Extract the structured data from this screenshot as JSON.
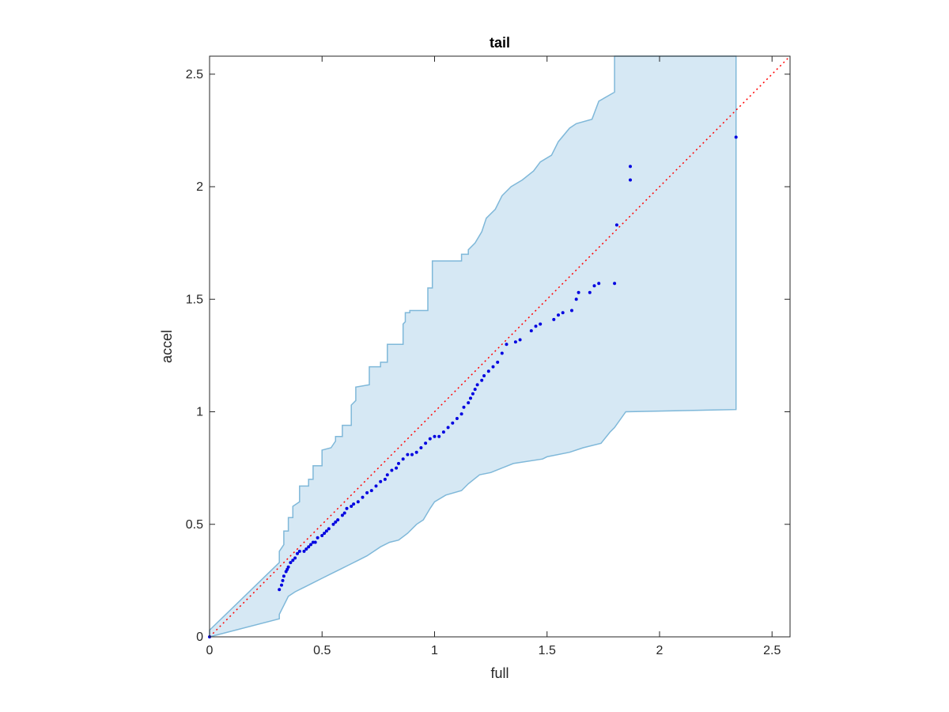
{
  "chart_data": {
    "type": "scatter",
    "title": "tail",
    "xlabel": "full",
    "ylabel": "accel",
    "xlim": [
      0,
      2.58
    ],
    "ylim": [
      0,
      2.58
    ],
    "xticks": [
      0,
      0.5,
      1,
      1.5,
      2,
      2.5
    ],
    "yticks": [
      0,
      0.5,
      1,
      1.5,
      2,
      2.5
    ],
    "xtick_labels": [
      "0",
      "0.5",
      "1",
      "1.5",
      "2",
      "2.5"
    ],
    "ytick_labels": [
      "0",
      "0.5",
      "1",
      "1.5",
      "2",
      "2.5"
    ],
    "grid": false,
    "colors": {
      "points": "#0000e0",
      "reference_line": "#ff0000",
      "band_fill": "#d6e8f4",
      "band_edge": "#7fb8d9",
      "axes": "#262626"
    },
    "reference_line": {
      "style": "dotted",
      "x": [
        0,
        2.58
      ],
      "y": [
        0,
        2.58
      ]
    },
    "band": {
      "upper": [
        [
          0,
          0.03
        ],
        [
          0.31,
          0.33
        ],
        [
          0.31,
          0.38
        ],
        [
          0.33,
          0.41
        ],
        [
          0.33,
          0.47
        ],
        [
          0.35,
          0.47
        ],
        [
          0.35,
          0.53
        ],
        [
          0.37,
          0.53
        ],
        [
          0.37,
          0.58
        ],
        [
          0.4,
          0.6
        ],
        [
          0.4,
          0.67
        ],
        [
          0.44,
          0.67
        ],
        [
          0.44,
          0.7
        ],
        [
          0.46,
          0.7
        ],
        [
          0.46,
          0.76
        ],
        [
          0.5,
          0.76
        ],
        [
          0.5,
          0.83
        ],
        [
          0.54,
          0.84
        ],
        [
          0.56,
          0.87
        ],
        [
          0.56,
          0.89
        ],
        [
          0.59,
          0.89
        ],
        [
          0.59,
          0.94
        ],
        [
          0.63,
          0.94
        ],
        [
          0.63,
          1.03
        ],
        [
          0.65,
          1.05
        ],
        [
          0.65,
          1.11
        ],
        [
          0.71,
          1.12
        ],
        [
          0.71,
          1.2
        ],
        [
          0.76,
          1.2
        ],
        [
          0.76,
          1.22
        ],
        [
          0.79,
          1.22
        ],
        [
          0.79,
          1.3
        ],
        [
          0.86,
          1.3
        ],
        [
          0.86,
          1.39
        ],
        [
          0.87,
          1.4
        ],
        [
          0.87,
          1.44
        ],
        [
          0.89,
          1.44
        ],
        [
          0.89,
          1.45
        ],
        [
          0.97,
          1.45
        ],
        [
          0.97,
          1.55
        ],
        [
          0.99,
          1.55
        ],
        [
          0.99,
          1.67
        ],
        [
          1.12,
          1.67
        ],
        [
          1.12,
          1.7
        ],
        [
          1.15,
          1.7
        ],
        [
          1.15,
          1.72
        ],
        [
          1.18,
          1.75
        ],
        [
          1.21,
          1.8
        ],
        [
          1.23,
          1.86
        ],
        [
          1.27,
          1.9
        ],
        [
          1.3,
          1.96
        ],
        [
          1.34,
          2.0
        ],
        [
          1.39,
          2.03
        ],
        [
          1.44,
          2.07
        ],
        [
          1.47,
          2.11
        ],
        [
          1.52,
          2.14
        ],
        [
          1.55,
          2.2
        ],
        [
          1.6,
          2.26
        ],
        [
          1.63,
          2.28
        ],
        [
          1.7,
          2.3
        ],
        [
          1.73,
          2.38
        ],
        [
          1.8,
          2.42
        ],
        [
          1.8,
          2.58
        ],
        [
          2.34,
          2.58
        ]
      ],
      "lower": [
        [
          2.34,
          1.01
        ],
        [
          1.85,
          1.0
        ],
        [
          1.8,
          0.93
        ],
        [
          1.78,
          0.91
        ],
        [
          1.74,
          0.86
        ],
        [
          1.66,
          0.84
        ],
        [
          1.6,
          0.82
        ],
        [
          1.5,
          0.8
        ],
        [
          1.48,
          0.79
        ],
        [
          1.35,
          0.77
        ],
        [
          1.3,
          0.75
        ],
        [
          1.25,
          0.73
        ],
        [
          1.2,
          0.72
        ],
        [
          1.15,
          0.68
        ],
        [
          1.12,
          0.65
        ],
        [
          1.05,
          0.63
        ],
        [
          1.0,
          0.6
        ],
        [
          0.98,
          0.57
        ],
        [
          0.95,
          0.52
        ],
        [
          0.92,
          0.5
        ],
        [
          0.88,
          0.46
        ],
        [
          0.84,
          0.43
        ],
        [
          0.8,
          0.42
        ],
        [
          0.76,
          0.4
        ],
        [
          0.73,
          0.38
        ],
        [
          0.7,
          0.36
        ],
        [
          0.66,
          0.34
        ],
        [
          0.62,
          0.32
        ],
        [
          0.58,
          0.3
        ],
        [
          0.54,
          0.28
        ],
        [
          0.5,
          0.26
        ],
        [
          0.46,
          0.24
        ],
        [
          0.42,
          0.22
        ],
        [
          0.38,
          0.2
        ],
        [
          0.35,
          0.18
        ],
        [
          0.33,
          0.14
        ],
        [
          0.31,
          0.1
        ],
        [
          0.31,
          0.08
        ],
        [
          0,
          0.0
        ]
      ]
    },
    "series": [
      {
        "points": [
          [
            0.0,
            0.0
          ],
          [
            0.31,
            0.21
          ],
          [
            0.32,
            0.23
          ],
          [
            0.325,
            0.25
          ],
          [
            0.33,
            0.27
          ],
          [
            0.34,
            0.29
          ],
          [
            0.345,
            0.3
          ],
          [
            0.35,
            0.31
          ],
          [
            0.36,
            0.33
          ],
          [
            0.37,
            0.34
          ],
          [
            0.38,
            0.35
          ],
          [
            0.39,
            0.37
          ],
          [
            0.4,
            0.38
          ],
          [
            0.42,
            0.38
          ],
          [
            0.43,
            0.39
          ],
          [
            0.44,
            0.4
          ],
          [
            0.45,
            0.41
          ],
          [
            0.46,
            0.42
          ],
          [
            0.47,
            0.42
          ],
          [
            0.48,
            0.44
          ],
          [
            0.5,
            0.45
          ],
          [
            0.51,
            0.46
          ],
          [
            0.52,
            0.47
          ],
          [
            0.53,
            0.48
          ],
          [
            0.55,
            0.5
          ],
          [
            0.56,
            0.51
          ],
          [
            0.57,
            0.52
          ],
          [
            0.59,
            0.54
          ],
          [
            0.6,
            0.55
          ],
          [
            0.61,
            0.57
          ],
          [
            0.63,
            0.58
          ],
          [
            0.64,
            0.59
          ],
          [
            0.66,
            0.6
          ],
          [
            0.68,
            0.62
          ],
          [
            0.7,
            0.64
          ],
          [
            0.72,
            0.65
          ],
          [
            0.74,
            0.67
          ],
          [
            0.76,
            0.69
          ],
          [
            0.78,
            0.7
          ],
          [
            0.79,
            0.72
          ],
          [
            0.81,
            0.74
          ],
          [
            0.83,
            0.75
          ],
          [
            0.84,
            0.77
          ],
          [
            0.86,
            0.79
          ],
          [
            0.88,
            0.81
          ],
          [
            0.9,
            0.81
          ],
          [
            0.92,
            0.82
          ],
          [
            0.94,
            0.84
          ],
          [
            0.96,
            0.86
          ],
          [
            0.98,
            0.88
          ],
          [
            1.0,
            0.89
          ],
          [
            1.02,
            0.89
          ],
          [
            1.04,
            0.91
          ],
          [
            1.06,
            0.93
          ],
          [
            1.08,
            0.95
          ],
          [
            1.1,
            0.97
          ],
          [
            1.12,
            0.99
          ],
          [
            1.13,
            1.02
          ],
          [
            1.15,
            1.04
          ],
          [
            1.16,
            1.06
          ],
          [
            1.17,
            1.08
          ],
          [
            1.18,
            1.1
          ],
          [
            1.19,
            1.12
          ],
          [
            1.21,
            1.14
          ],
          [
            1.22,
            1.16
          ],
          [
            1.24,
            1.18
          ],
          [
            1.26,
            1.2
          ],
          [
            1.28,
            1.22
          ],
          [
            1.3,
            1.26
          ],
          [
            1.32,
            1.3
          ],
          [
            1.36,
            1.31
          ],
          [
            1.38,
            1.32
          ],
          [
            1.43,
            1.36
          ],
          [
            1.45,
            1.38
          ],
          [
            1.47,
            1.39
          ],
          [
            1.53,
            1.41
          ],
          [
            1.55,
            1.43
          ],
          [
            1.57,
            1.44
          ],
          [
            1.61,
            1.45
          ],
          [
            1.63,
            1.5
          ],
          [
            1.64,
            1.53
          ],
          [
            1.69,
            1.53
          ],
          [
            1.71,
            1.56
          ],
          [
            1.73,
            1.57
          ],
          [
            1.8,
            1.57
          ],
          [
            1.81,
            1.83
          ],
          [
            1.87,
            2.03
          ],
          [
            1.87,
            2.09
          ],
          [
            2.34,
            2.22
          ]
        ]
      }
    ]
  }
}
